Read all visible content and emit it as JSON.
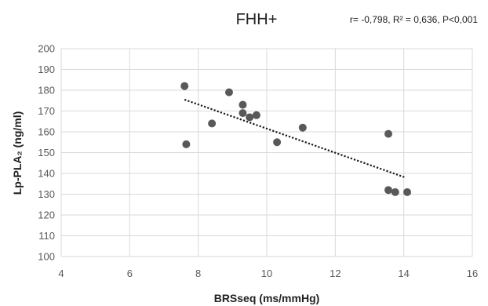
{
  "chart_data": {
    "type": "scatter",
    "title": "FHH+",
    "annotation": "r= -0,798, R² = 0,636, P<0,001",
    "xlabel": "BRSseq (ms/mmHg)",
    "ylabel": "Lp-PLA₂ (ng/ml)",
    "xlim": [
      4,
      16
    ],
    "ylim": [
      100,
      200
    ],
    "x_ticks": [
      4,
      6,
      8,
      10,
      12,
      14,
      16
    ],
    "y_ticks": [
      100,
      110,
      120,
      130,
      140,
      150,
      160,
      170,
      180,
      190,
      200
    ],
    "grid": true,
    "legend": "none",
    "points": [
      {
        "x": 7.6,
        "y": 182
      },
      {
        "x": 7.65,
        "y": 154
      },
      {
        "x": 8.4,
        "y": 164
      },
      {
        "x": 8.9,
        "y": 179
      },
      {
        "x": 9.3,
        "y": 173
      },
      {
        "x": 9.3,
        "y": 169
      },
      {
        "x": 9.5,
        "y": 167
      },
      {
        "x": 9.7,
        "y": 168
      },
      {
        "x": 10.3,
        "y": 155
      },
      {
        "x": 11.05,
        "y": 162
      },
      {
        "x": 13.55,
        "y": 159
      },
      {
        "x": 13.55,
        "y": 132
      },
      {
        "x": 13.75,
        "y": 131
      },
      {
        "x": 14.1,
        "y": 131
      }
    ],
    "trendline": {
      "x1": 7.6,
      "y1": 175.5,
      "x2": 14.05,
      "y2": 138
    },
    "colors": {
      "marker": "#595959",
      "trendline": "#1a1a1a",
      "grid": "#d9d9d9",
      "text": "#595959"
    }
  }
}
